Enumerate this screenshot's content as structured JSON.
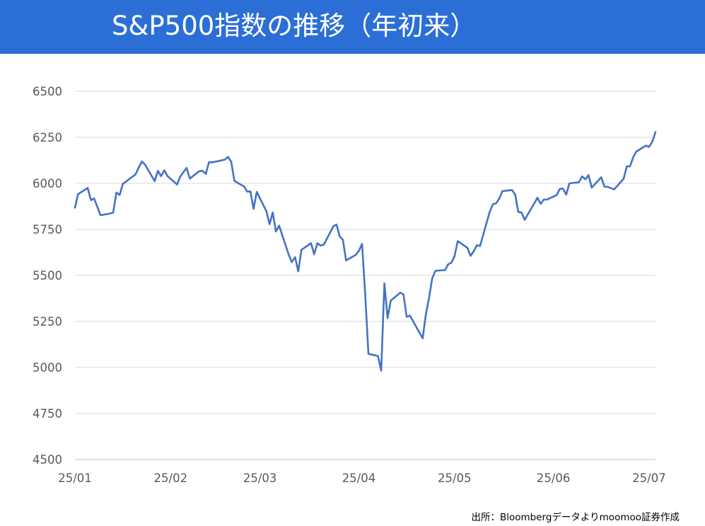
{
  "header": {
    "title": "S&P500指数の推移（年初来）"
  },
  "source_note": "出所：Bloombergデータよりmoomoo証券作成",
  "colors": {
    "title_bar": "#2b6fd6",
    "line": "#4472c4",
    "grid": "#d9d9d9",
    "tick_text": "#595959"
  },
  "chart_data": {
    "type": "line",
    "title": "S&P500指数の推移（年初来）",
    "xlabel": "",
    "ylabel": "",
    "ylim": [
      4500,
      6500
    ],
    "yticks": [
      4500,
      4750,
      5000,
      5250,
      5500,
      5750,
      6000,
      6250,
      6500
    ],
    "xticks": [
      {
        "date": "2025-01-02",
        "label": "25/01"
      },
      {
        "date": "2025-02-01",
        "label": "25/02"
      },
      {
        "date": "2025-03-01",
        "label": "25/03"
      },
      {
        "date": "2025-04-01",
        "label": "25/04"
      },
      {
        "date": "2025-05-01",
        "label": "25/05"
      },
      {
        "date": "2025-06-01",
        "label": "25/06"
      },
      {
        "date": "2025-07-01",
        "label": "25/07"
      }
    ],
    "grid": true,
    "legend": "none",
    "series": [
      {
        "x": [
          "2025-01-02",
          "2025-01-03",
          "2025-01-06",
          "2025-01-07",
          "2025-01-08",
          "2025-01-10",
          "2025-01-13",
          "2025-01-14",
          "2025-01-15",
          "2025-01-16",
          "2025-01-17",
          "2025-01-21",
          "2025-01-22",
          "2025-01-23",
          "2025-01-24",
          "2025-01-27",
          "2025-01-28",
          "2025-01-29",
          "2025-01-30",
          "2025-01-31",
          "2025-02-03",
          "2025-02-04",
          "2025-02-05",
          "2025-02-06",
          "2025-02-07",
          "2025-02-10",
          "2025-02-11",
          "2025-02-12",
          "2025-02-13",
          "2025-02-14",
          "2025-02-18",
          "2025-02-19",
          "2025-02-20",
          "2025-02-21",
          "2025-02-24",
          "2025-02-25",
          "2025-02-26",
          "2025-02-27",
          "2025-02-28",
          "2025-03-03",
          "2025-03-04",
          "2025-03-05",
          "2025-03-06",
          "2025-03-07",
          "2025-03-10",
          "2025-03-11",
          "2025-03-12",
          "2025-03-13",
          "2025-03-14",
          "2025-03-17",
          "2025-03-18",
          "2025-03-19",
          "2025-03-20",
          "2025-03-21",
          "2025-03-24",
          "2025-03-25",
          "2025-03-26",
          "2025-03-27",
          "2025-03-28",
          "2025-03-31",
          "2025-04-01",
          "2025-04-02",
          "2025-04-03",
          "2025-04-04",
          "2025-04-07",
          "2025-04-08",
          "2025-04-09",
          "2025-04-10",
          "2025-04-11",
          "2025-04-14",
          "2025-04-15",
          "2025-04-16",
          "2025-04-17",
          "2025-04-21",
          "2025-04-22",
          "2025-04-23",
          "2025-04-24",
          "2025-04-25",
          "2025-04-28",
          "2025-04-29",
          "2025-04-30",
          "2025-05-01",
          "2025-05-02",
          "2025-05-05",
          "2025-05-06",
          "2025-05-07",
          "2025-05-08",
          "2025-05-09",
          "2025-05-12",
          "2025-05-13",
          "2025-05-14",
          "2025-05-15",
          "2025-05-16",
          "2025-05-19",
          "2025-05-20",
          "2025-05-21",
          "2025-05-22",
          "2025-05-23",
          "2025-05-27",
          "2025-05-28",
          "2025-05-29",
          "2025-05-30",
          "2025-06-02",
          "2025-06-03",
          "2025-06-04",
          "2025-06-05",
          "2025-06-06",
          "2025-06-09",
          "2025-06-10",
          "2025-06-11",
          "2025-06-12",
          "2025-06-13",
          "2025-06-16",
          "2025-06-17",
          "2025-06-18",
          "2025-06-20",
          "2025-06-23",
          "2025-06-24",
          "2025-06-25",
          "2025-06-26",
          "2025-06-27",
          "2025-06-30",
          "2025-07-01",
          "2025-07-02",
          "2025-07-03"
        ],
        "values": [
          5868,
          5942,
          5975,
          5909,
          5918,
          5827,
          5836,
          5842,
          5950,
          5937,
          5997,
          6049,
          6086,
          6119,
          6101,
          6012,
          6068,
          6039,
          6071,
          6040,
          5994,
          6037,
          6061,
          6084,
          6026,
          6066,
          6068,
          6051,
          6115,
          6114,
          6129,
          6144,
          6117,
          6013,
          5983,
          5955,
          5956,
          5861,
          5954,
          5849,
          5778,
          5842,
          5738,
          5770,
          5614,
          5572,
          5599,
          5522,
          5639,
          5675,
          5615,
          5675,
          5662,
          5667,
          5767,
          5776,
          5712,
          5693,
          5581,
          5611,
          5633,
          5671,
          5396,
          5074,
          5062,
          4982,
          5457,
          5268,
          5363,
          5406,
          5396,
          5275,
          5282,
          5158,
          5287,
          5376,
          5484,
          5525,
          5529,
          5560,
          5569,
          5604,
          5686,
          5650,
          5606,
          5631,
          5664,
          5660,
          5844,
          5886,
          5892,
          5917,
          5958,
          5964,
          5940,
          5844,
          5842,
          5802,
          5922,
          5889,
          5912,
          5912,
          5936,
          5970,
          5971,
          5939,
          6000,
          6006,
          6038,
          6022,
          6045,
          5977,
          6033,
          5982,
          5981,
          5967,
          6025,
          6092,
          6092,
          6141,
          6173,
          6205,
          6198,
          6227,
          6279
        ]
      }
    ]
  }
}
